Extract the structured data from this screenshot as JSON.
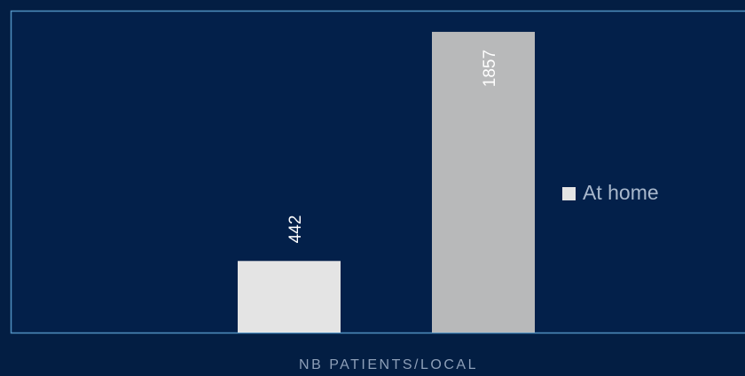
{
  "chart_data": {
    "type": "bar",
    "x_label": "NB PATIENTS/LOCAL",
    "categories": [
      null,
      null
    ],
    "values": [
      442,
      1857
    ],
    "colors": [
      "#e4e4e4",
      "#b8b9ba"
    ],
    "ylim": [
      0,
      1988
    ],
    "legend": {
      "label": "At home",
      "color": "#e4e4e4",
      "position": "right"
    }
  }
}
